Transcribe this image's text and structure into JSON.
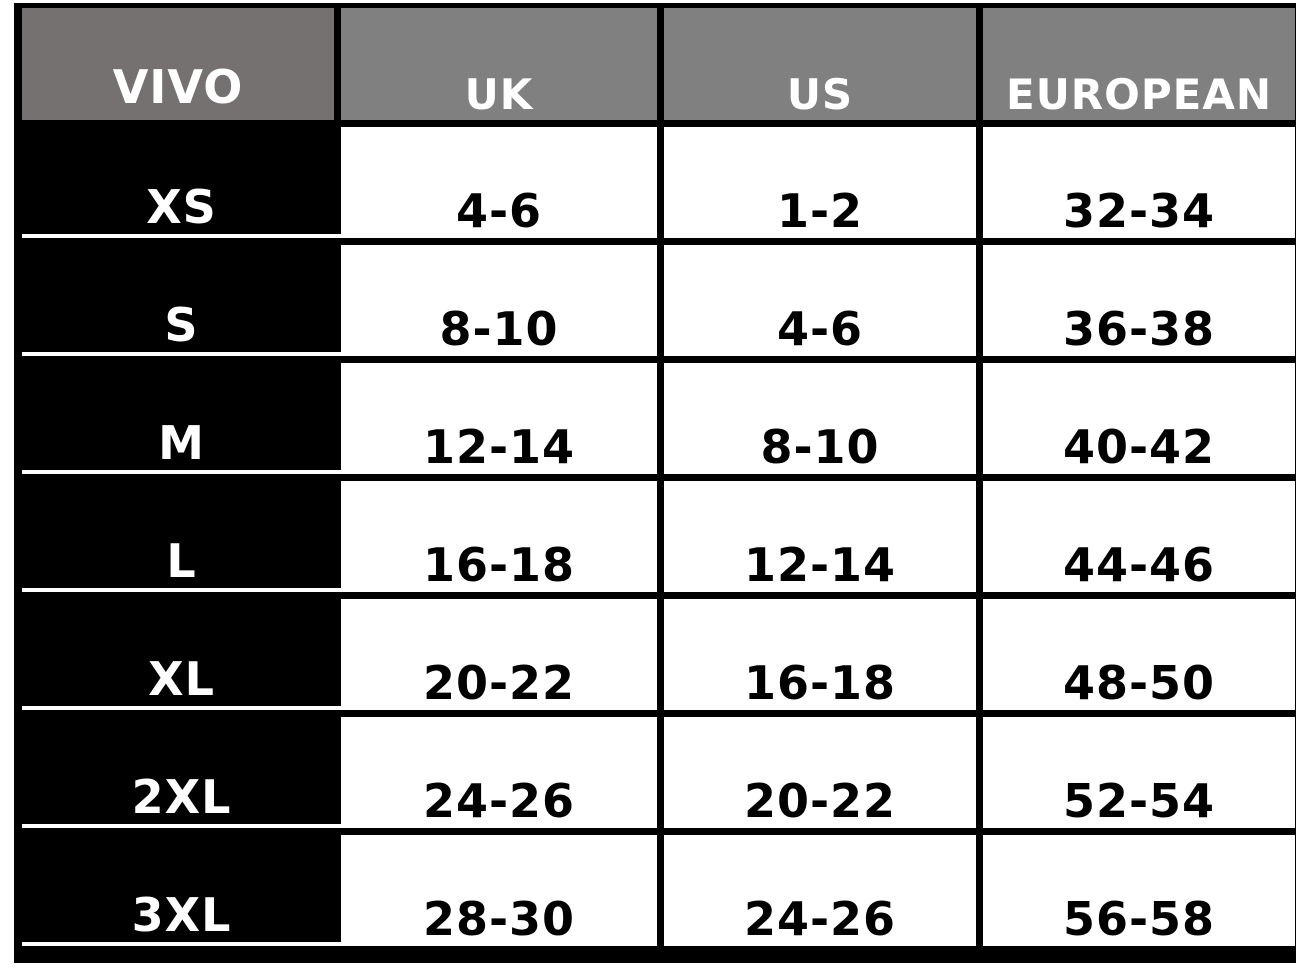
{
  "table": {
    "headers": [
      "VIVO",
      "UK",
      "US",
      "EUROPEAN"
    ],
    "rows": [
      [
        "XS",
        "4-6",
        "1-2",
        "32-34"
      ],
      [
        "S",
        "8-10",
        "4-6",
        "36-38"
      ],
      [
        "M",
        "12-14",
        "8-10",
        "40-42"
      ],
      [
        "L",
        "16-18",
        "12-14",
        "44-46"
      ],
      [
        "XL",
        "20-22",
        "16-18",
        "48-50"
      ],
      [
        "2XL",
        "24-26",
        "20-22",
        "52-54"
      ],
      [
        "3XL",
        "28-30",
        "24-26",
        "56-58"
      ]
    ]
  },
  "colors": {
    "header_brand": "#757170",
    "header": "#808080",
    "size_cell": "#000000",
    "value_cell": "#ffffff"
  }
}
